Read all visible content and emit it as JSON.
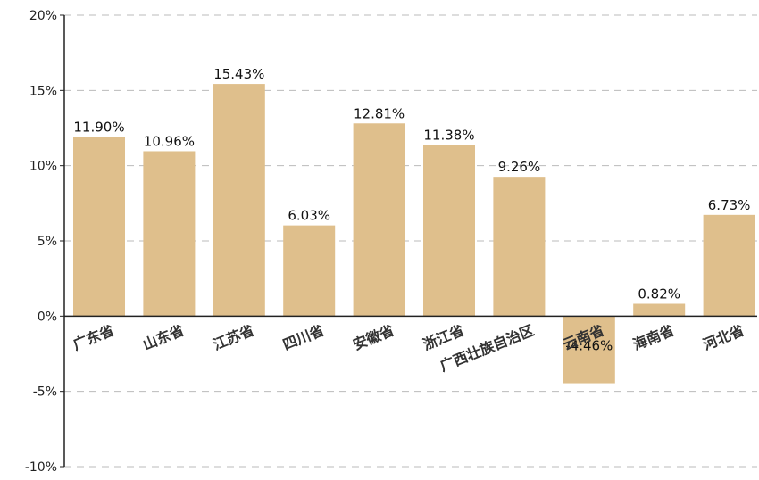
{
  "chart_data": {
    "type": "bar",
    "categories": [
      "广东省",
      "山东省",
      "江苏省",
      "四川省",
      "安徽省",
      "浙江省",
      "广西壮族自治区",
      "云南省",
      "海南省",
      "河北省"
    ],
    "values": [
      11.9,
      10.96,
      15.43,
      6.03,
      12.81,
      11.38,
      9.26,
      -4.46,
      0.82,
      6.73
    ],
    "data_labels": [
      "11.90%",
      "10.96%",
      "15.43%",
      "6.03%",
      "12.81%",
      "11.38%",
      "9.26%",
      "-4.46%",
      "0.82%",
      "6.73%"
    ],
    "yticks": [
      20,
      15,
      10,
      5,
      0,
      -5,
      -10
    ],
    "ytick_labels": [
      "20%",
      "15%",
      "10%",
      "5%",
      "0%",
      "-5%",
      "-10%"
    ],
    "ylim": [
      -10,
      20
    ],
    "grid": true,
    "bar_color": "#dfbf8c",
    "title": "",
    "xlabel": "",
    "ylabel": ""
  }
}
